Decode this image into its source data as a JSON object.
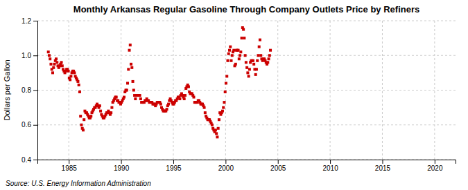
{
  "chart_data": {
    "type": "scatter",
    "title": "Monthly Arkansas Regular Gasoline Through Company Outlets Price by Refiners",
    "y_label": "Dollars per Gallon",
    "annotations": [
      "Source: U.S. Energy Information Administration"
    ],
    "xlim": [
      1982,
      2022
    ],
    "ylim": [
      0.4,
      1.2
    ],
    "xticks": [
      1985,
      1990,
      1995,
      2000,
      2005,
      2010,
      2015,
      2020
    ],
    "yticks": [
      0.4,
      0.6,
      0.8,
      {
        "value": 1.0,
        "label": "1.0"
      },
      1.2
    ],
    "grid": true,
    "color": "#cc0000",
    "marker": "square",
    "x": [
      1983.0416666666667,
      1983.125,
      1983.2083333333333,
      1983.2916666666667,
      1983.375,
      1983.4583333333333,
      1983.5416666666667,
      1983.625,
      1983.7083333333333,
      1983.7916666666667,
      1983.875,
      1983.9583333333333,
      1984.0416666666667,
      1984.125,
      1984.2083333333333,
      1984.2916666666667,
      1984.375,
      1984.4583333333333,
      1984.5416666666667,
      1984.625,
      1984.7083333333333,
      1984.7916666666667,
      1984.875,
      1984.9583333333333,
      1985.0416666666667,
      1985.125,
      1985.2083333333333,
      1985.2916666666667,
      1985.375,
      1985.4583333333333,
      1985.5416666666667,
      1985.625,
      1985.7083333333333,
      1985.7916666666667,
      1985.875,
      1985.9583333333333,
      1986.0416666666667,
      1986.125,
      1986.2083333333333,
      1986.2916666666667,
      1986.375,
      1986.4583333333333,
      1986.5416666666667,
      1986.625,
      1986.7083333333333,
      1986.7916666666667,
      1986.875,
      1986.9583333333333,
      1987.0416666666667,
      1987.125,
      1987.2083333333333,
      1987.2916666666667,
      1987.375,
      1987.4583333333333,
      1987.5416666666667,
      1987.625,
      1987.7083333333333,
      1987.7916666666667,
      1987.875,
      1987.9583333333333,
      1988.0416666666667,
      1988.125,
      1988.2083333333333,
      1988.2916666666667,
      1988.375,
      1988.4583333333333,
      1988.5416666666667,
      1988.625,
      1988.7083333333333,
      1988.7916666666667,
      1988.875,
      1988.9583333333333,
      1989.0416666666667,
      1989.125,
      1989.2083333333333,
      1989.2916666666667,
      1989.375,
      1989.4583333333333,
      1989.5416666666667,
      1989.625,
      1989.7083333333333,
      1989.7916666666667,
      1989.875,
      1989.9583333333333,
      1990.0416666666667,
      1990.125,
      1990.2083333333333,
      1990.2916666666667,
      1990.375,
      1990.4583333333333,
      1990.5416666666667,
      1990.625,
      1990.7083333333333,
      1990.7916666666667,
      1990.875,
      1990.9583333333333,
      1991.0416666666667,
      1991.125,
      1991.2083333333333,
      1991.2916666666667,
      1991.375,
      1991.4583333333333,
      1991.5416666666667,
      1991.625,
      1991.7083333333333,
      1991.7916666666667,
      1991.875,
      1991.9583333333333,
      1992.0416666666667,
      1992.125,
      1992.2083333333333,
      1992.2916666666667,
      1992.375,
      1992.4583333333333,
      1992.5416666666667,
      1992.625,
      1992.7083333333333,
      1992.7916666666667,
      1992.875,
      1992.9583333333333,
      1993.0416666666667,
      1993.125,
      1993.2083333333333,
      1993.2916666666667,
      1993.375,
      1993.4583333333333,
      1993.5416666666667,
      1993.625,
      1993.7083333333333,
      1993.7916666666667,
      1993.875,
      1993.9583333333333,
      1994.0416666666667,
      1994.125,
      1994.2083333333333,
      1994.2916666666667,
      1994.375,
      1994.4583333333333,
      1994.5416666666667,
      1994.625,
      1994.7083333333333,
      1994.7916666666667,
      1994.875,
      1994.9583333333333,
      1995.0416666666667,
      1995.125,
      1995.2083333333333,
      1995.2916666666667,
      1995.375,
      1995.4583333333333,
      1995.5416666666667,
      1995.625,
      1995.7083333333333,
      1995.7916666666667,
      1995.875,
      1995.9583333333333,
      1996.0416666666667,
      1996.125,
      1996.2083333333333,
      1996.2916666666667,
      1996.375,
      1996.4583333333333,
      1996.5416666666667,
      1996.625,
      1996.7083333333333,
      1996.7916666666667,
      1996.875,
      1996.9583333333333,
      1997.0416666666667,
      1997.125,
      1997.2083333333333,
      1997.2916666666667,
      1997.375,
      1997.4583333333333,
      1997.5416666666667,
      1997.625,
      1997.7083333333333,
      1997.7916666666667,
      1997.875,
      1997.9583333333333,
      1998.0416666666667,
      1998.125,
      1998.2083333333333,
      1998.2916666666667,
      1998.375,
      1998.4583333333333,
      1998.5416666666667,
      1998.625,
      1998.7083333333333,
      1998.7916666666667,
      1998.875,
      1998.9583333333333,
      1999.0416666666667,
      1999.125,
      1999.2083333333333,
      1999.2916666666667,
      1999.375,
      1999.4583333333333,
      1999.5416666666667,
      1999.625,
      1999.7083333333333,
      1999.7916666666667,
      1999.875,
      1999.9583333333333,
      2000.0416666666667,
      2000.125,
      2000.2083333333333,
      2000.2916666666667,
      2000.375,
      2000.4583333333333,
      2000.5416666666667,
      2000.625,
      2000.7083333333333,
      2000.7916666666667,
      2000.875,
      2000.9583333333333,
      2001.0416666666667,
      2001.125,
      2001.2083333333333,
      2001.2916666666667,
      2001.375,
      2001.4583333333333,
      2001.5416666666667,
      2001.625,
      2001.7083333333333,
      2001.7916666666667,
      2001.875,
      2001.9583333333333,
      2002.0416666666667,
      2002.125,
      2002.2083333333333,
      2002.2916666666667,
      2002.375,
      2002.4583333333333,
      2002.5416666666667,
      2002.625,
      2002.7083333333333,
      2002.7916666666667,
      2002.875,
      2002.9583333333333,
      2003.0416666666667,
      2003.125,
      2003.2083333333333,
      2003.2916666666667,
      2003.375,
      2003.4583333333333,
      2003.5416666666667,
      2003.625,
      2003.7083333333333,
      2003.7916666666667,
      2003.875,
      2003.9583333333333,
      2004.0416666666667,
      2004.125,
      2004.2083333333333,
      2004.2916666666667
    ],
    "values": [
      1.02,
      1.0,
      0.98,
      0.95,
      0.92,
      0.9,
      0.93,
      0.95,
      0.97,
      0.98,
      0.96,
      0.94,
      0.93,
      0.94,
      0.95,
      0.96,
      0.94,
      0.92,
      0.91,
      0.9,
      0.91,
      0.92,
      0.92,
      0.91,
      0.87,
      0.86,
      0.88,
      0.9,
      0.91,
      0.91,
      0.9,
      0.88,
      0.87,
      0.86,
      0.85,
      0.83,
      0.79,
      0.65,
      0.6,
      0.58,
      0.57,
      0.63,
      0.68,
      0.67,
      0.67,
      0.66,
      0.65,
      0.64,
      0.64,
      0.65,
      0.67,
      0.68,
      0.69,
      0.7,
      0.7,
      0.71,
      0.72,
      0.71,
      0.7,
      0.71,
      0.68,
      0.66,
      0.65,
      0.64,
      0.64,
      0.65,
      0.66,
      0.67,
      0.67,
      0.68,
      0.67,
      0.66,
      0.67,
      0.7,
      0.73,
      0.74,
      0.75,
      0.76,
      0.76,
      0.74,
      0.74,
      0.73,
      0.73,
      0.72,
      0.73,
      0.74,
      0.75,
      0.76,
      0.79,
      0.8,
      0.8,
      0.84,
      0.92,
      1.03,
      1.06,
      0.95,
      0.93,
      0.85,
      0.8,
      0.77,
      0.75,
      0.77,
      0.77,
      0.77,
      0.77,
      0.77,
      0.75,
      0.73,
      0.73,
      0.73,
      0.73,
      0.74,
      0.74,
      0.75,
      0.74,
      0.74,
      0.73,
      0.73,
      0.73,
      0.73,
      0.72,
      0.72,
      0.72,
      0.71,
      0.72,
      0.73,
      0.73,
      0.73,
      0.73,
      0.72,
      0.7,
      0.69,
      0.68,
      0.68,
      0.68,
      0.68,
      0.69,
      0.71,
      0.72,
      0.74,
      0.75,
      0.74,
      0.73,
      0.72,
      0.72,
      0.73,
      0.74,
      0.74,
      0.75,
      0.76,
      0.76,
      0.75,
      0.77,
      0.78,
      0.77,
      0.76,
      0.75,
      0.77,
      0.81,
      0.82,
      0.83,
      0.82,
      0.79,
      0.78,
      0.78,
      0.78,
      0.77,
      0.76,
      0.73,
      0.73,
      0.73,
      0.73,
      0.74,
      0.74,
      0.73,
      0.72,
      0.72,
      0.72,
      0.71,
      0.7,
      0.67,
      0.65,
      0.64,
      0.63,
      0.63,
      0.63,
      0.62,
      0.61,
      0.6,
      0.58,
      0.57,
      0.56,
      0.57,
      0.55,
      0.53,
      0.58,
      0.63,
      0.67,
      0.66,
      0.67,
      0.68,
      0.7,
      0.73,
      0.79,
      0.84,
      0.88,
      0.97,
      1.01,
      1.03,
      1.05,
      0.97,
      1.0,
      1.02,
      1.03,
      0.94,
      0.95,
      1.03,
      1.03,
      1.03,
      0.98,
      1.0,
      1.02,
      1.1,
      1.16,
      1.15,
      1.1,
      1.0,
      0.96,
      0.93,
      0.9,
      0.88,
      0.92,
      0.96,
      0.97,
      0.97,
      0.97,
      0.95,
      0.92,
      0.89,
      0.92,
      0.97,
      1.0,
      1.05,
      1.09,
      1.0,
      0.98,
      0.97,
      0.98,
      0.98,
      0.97,
      0.96,
      0.95,
      0.96,
      0.98,
      1.0,
      1.03
    ]
  }
}
